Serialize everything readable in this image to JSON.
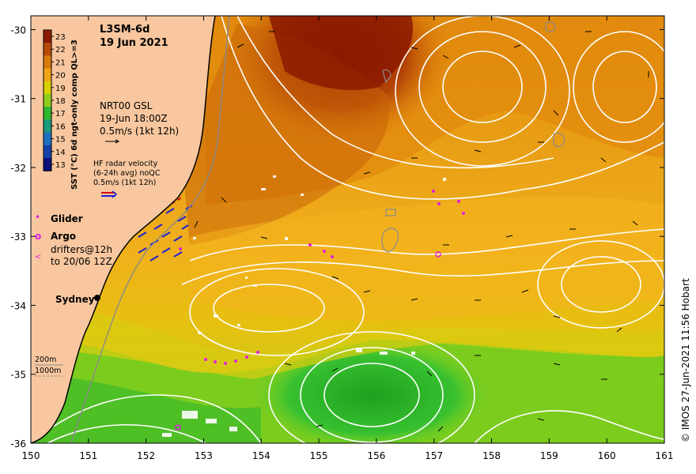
{
  "map": {
    "title_line1": "L3SM-6d",
    "title_line2": "19 Jun 2021",
    "x_ticks": [
      {
        "value": 150,
        "label": "150"
      },
      {
        "value": 151,
        "label": "151"
      },
      {
        "value": 152,
        "label": "152"
      },
      {
        "value": 153,
        "label": "153"
      },
      {
        "value": 154,
        "label": "154"
      },
      {
        "value": 155,
        "label": "155"
      },
      {
        "value": 156,
        "label": "156"
      },
      {
        "value": 157,
        "label": "157"
      },
      {
        "value": 158,
        "label": "158"
      },
      {
        "value": 159,
        "label": "159"
      },
      {
        "value": 160,
        "label": "160"
      },
      {
        "value": 161,
        "label": "161"
      }
    ],
    "y_ticks": [
      {
        "value": -30,
        "label": "-30"
      },
      {
        "value": -31,
        "label": "-31"
      },
      {
        "value": -32,
        "label": "-32"
      },
      {
        "value": -33,
        "label": "-33"
      },
      {
        "value": -34,
        "label": "-34"
      },
      {
        "value": -35,
        "label": "-35"
      },
      {
        "value": -36,
        "label": "-36"
      }
    ],
    "lon_range": [
      150,
      161
    ],
    "lat_range": [
      -36,
      -29.8
    ],
    "credit": "© IMOS 27-Jun-2021 11:56 Hobart",
    "place_label": "Sydney",
    "colors": {
      "land": "#f8c79f",
      "warm": "#c45a06",
      "mid": "#f0a516",
      "cool": "#2db82d",
      "contour": "#ffffff",
      "glider": "#e020e0",
      "radar": "#1f1fd0",
      "coastline": "#000000",
      "isobath": "#8a8a8a"
    }
  },
  "colorbar": {
    "title": "SST (°C) 6d ngt-only comp QL>=3",
    "ticks": [
      "23",
      "22",
      "21",
      "20",
      "19",
      "18",
      "17",
      "16",
      "15",
      "14",
      "13"
    ],
    "colors": [
      "#8b1a00",
      "#b84a08",
      "#d87a0c",
      "#f0a516",
      "#d8d000",
      "#90cc1c",
      "#2db82d",
      "#1a9a7a",
      "#2070c0",
      "#1540a8",
      "#0c1078"
    ]
  },
  "legend": {
    "nrt_line1": "NRT00 GSL",
    "nrt_line2": "19-Jun 18:00Z",
    "nrt_line3": "0.5m/s (1kt 12h)",
    "hf_line1": "HF radar velocity",
    "hf_line2": "(6-24h avg) noQC",
    "hf_line3": "0.5m/s (1kt 12h)",
    "glider": "Glider",
    "argo": "Argo",
    "drifters_line1": "drifters@12h",
    "drifters_line2": "to 20/06 12Z",
    "drifter_marker": "<",
    "glider_marker": "•",
    "argo_marker": "o",
    "depth_200": "200m",
    "depth_1000": "1000m"
  }
}
